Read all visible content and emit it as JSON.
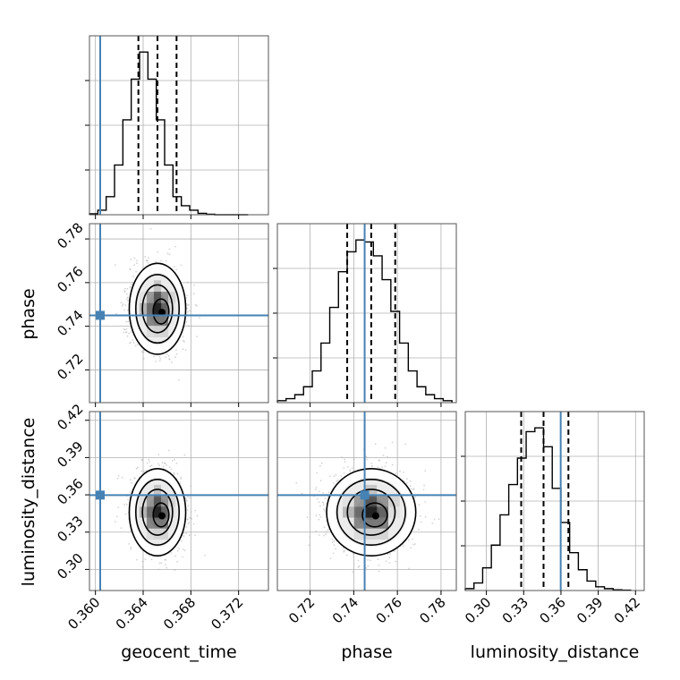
{
  "chart_data": {
    "type": "corner",
    "parameters": [
      {
        "name": "geocent_time",
        "label": "geocent_time",
        "range": [
          0.3595,
          0.3745
        ],
        "ticks": [
          0.36,
          0.364,
          0.368,
          0.372
        ],
        "tick_labels": [
          "0.360",
          "0.364",
          "0.368",
          "0.372"
        ],
        "truth": 0.3604,
        "quantiles": [
          0.3636,
          0.3652,
          0.3668
        ]
      },
      {
        "name": "phase",
        "label": "phase",
        "range": [
          0.705,
          0.787
        ],
        "ticks": [
          0.72,
          0.74,
          0.76,
          0.78
        ],
        "tick_labels": [
          "0.72",
          "0.74",
          "0.76",
          "0.78"
        ],
        "truth": 0.745,
        "quantiles": [
          0.737,
          0.748,
          0.759
        ]
      },
      {
        "name": "luminosity_distance",
        "label": "luminosity_distance",
        "range": [
          0.283,
          0.427
        ],
        "ticks": [
          0.3,
          0.33,
          0.36,
          0.39,
          0.42
        ],
        "tick_labels": [
          "0.30",
          "0.33",
          "0.36",
          "0.39",
          "0.42"
        ],
        "truth": 0.3598,
        "quantiles": [
          0.328,
          0.346,
          0.366
        ]
      }
    ],
    "histograms": [
      {
        "param": "geocent_time",
        "bin_edges": [
          0.3595,
          0.3602,
          0.3609,
          0.3616,
          0.3623,
          0.363,
          0.3637,
          0.3644,
          0.3651,
          0.3658,
          0.3665,
          0.3672,
          0.3679,
          0.3686,
          0.3693,
          0.37,
          0.3707,
          0.3714,
          0.3721,
          0.3728
        ],
        "counts": [
          2,
          10,
          40,
          110,
          210,
          300,
          360,
          300,
          210,
          110,
          40,
          20,
          10,
          3,
          1,
          0,
          0,
          0,
          0
        ]
      },
      {
        "param": "phase",
        "bin_edges": [
          0.705,
          0.709,
          0.713,
          0.717,
          0.721,
          0.725,
          0.729,
          0.733,
          0.737,
          0.741,
          0.745,
          0.749,
          0.753,
          0.757,
          0.761,
          0.765,
          0.769,
          0.773,
          0.777,
          0.781,
          0.785
        ],
        "counts": [
          5,
          10,
          20,
          40,
          80,
          150,
          240,
          330,
          380,
          410,
          405,
          370,
          310,
          230,
          150,
          80,
          40,
          20,
          10,
          5
        ]
      },
      {
        "param": "luminosity_distance",
        "bin_edges": [
          0.283,
          0.29,
          0.297,
          0.304,
          0.311,
          0.318,
          0.325,
          0.332,
          0.339,
          0.346,
          0.353,
          0.36,
          0.367,
          0.374,
          0.381,
          0.388,
          0.395,
          0.402,
          0.409,
          0.416
        ],
        "counts": [
          5,
          20,
          60,
          120,
          200,
          280,
          350,
          420,
          430,
          380,
          270,
          180,
          100,
          55,
          25,
          10,
          5,
          2,
          1
        ]
      }
    ],
    "scatter_2d": [
      {
        "x": "geocent_time",
        "y": "phase",
        "mean": [
          0.3652,
          0.748
        ],
        "sd": [
          0.0011,
          0.0095
        ]
      },
      {
        "x": "geocent_time",
        "y": "luminosity_distance",
        "mean": [
          0.3652,
          0.346
        ],
        "sd": [
          0.0011,
          0.016
        ]
      },
      {
        "x": "phase",
        "y": "luminosity_distance",
        "mean": [
          0.748,
          0.346
        ],
        "sd": [
          0.0095,
          0.016
        ]
      }
    ],
    "grid": true,
    "colors": {
      "truth": "#4682b4",
      "hist": "#000000",
      "points": "#b0b0b0",
      "grid": "#b0b0b0"
    }
  }
}
